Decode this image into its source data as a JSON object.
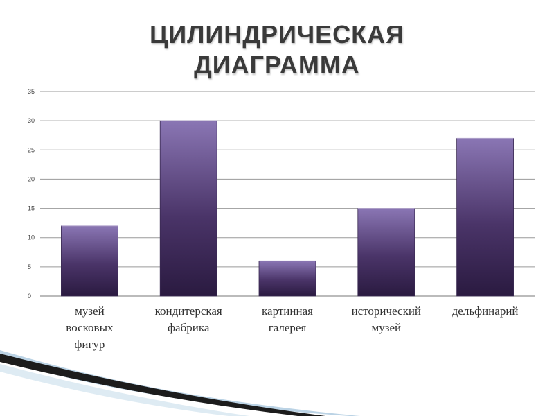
{
  "slide": {
    "title_line1": "ЦИЛИНДРИЧЕСКАЯ",
    "title_line2": "ДИАГРАММА"
  },
  "colors": {
    "bar_top": "#8a76b4",
    "bar_bottom": "#2a1a40",
    "grid": "#9a9a9a",
    "axis": "#777777"
  },
  "chart_data": {
    "type": "bar",
    "categories": [
      [
        "музей",
        "восковых",
        "фигур"
      ],
      [
        "кондитерская",
        "фабрика"
      ],
      [
        "картинная",
        "галерея"
      ],
      [
        "исторический",
        "музей"
      ],
      [
        "дельфинарий"
      ]
    ],
    "values": [
      12,
      30,
      6,
      15,
      27
    ],
    "yticks": [
      0,
      5,
      10,
      15,
      20,
      25,
      30,
      35
    ],
    "ylim": [
      0,
      35
    ],
    "grid": true,
    "legend": "none"
  }
}
